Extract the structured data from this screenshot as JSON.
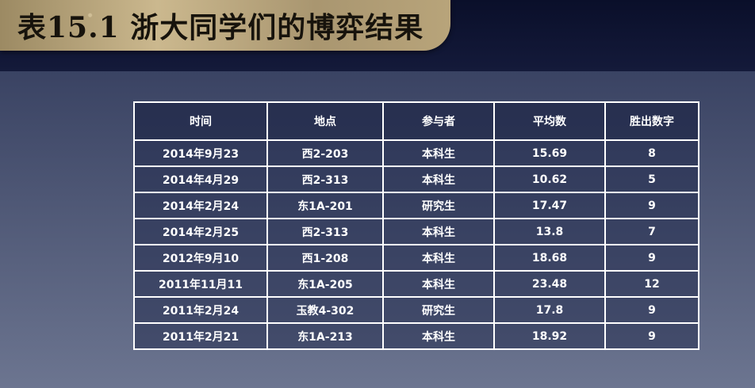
{
  "title": "表15.1 浙大同学们的博弈结果",
  "table": {
    "headers": [
      "时间",
      "地点",
      "参与者",
      "平均数",
      "胜出数字"
    ],
    "rows": [
      [
        "2014年9月23",
        "西2-203",
        "本科生",
        "15.69",
        "8"
      ],
      [
        "2014年4月29",
        "西2-313",
        "本科生",
        "10.62",
        "5"
      ],
      [
        "2014年2月24",
        "东1A-201",
        "研究生",
        "17.47",
        "9"
      ],
      [
        "2014年2月25",
        "西2-313",
        "本科生",
        "13.8",
        "7"
      ],
      [
        "2012年9月10",
        "西1-208",
        "本科生",
        "18.68",
        "9"
      ],
      [
        "2011年11月11",
        "东1A-205",
        "本科生",
        "23.48",
        "12"
      ],
      [
        "2011年2月24",
        "玉教4-302",
        "研究生",
        "17.8",
        "9"
      ],
      [
        "2011年2月21",
        "东1A-213",
        "本科生",
        "18.92",
        "9"
      ]
    ]
  },
  "colors": {
    "banner_gold": "#b8a47a",
    "title_text": "#17130c",
    "table_border": "#ffffff",
    "background_dark": "#0b1130",
    "background_panel": "#4a5373"
  }
}
